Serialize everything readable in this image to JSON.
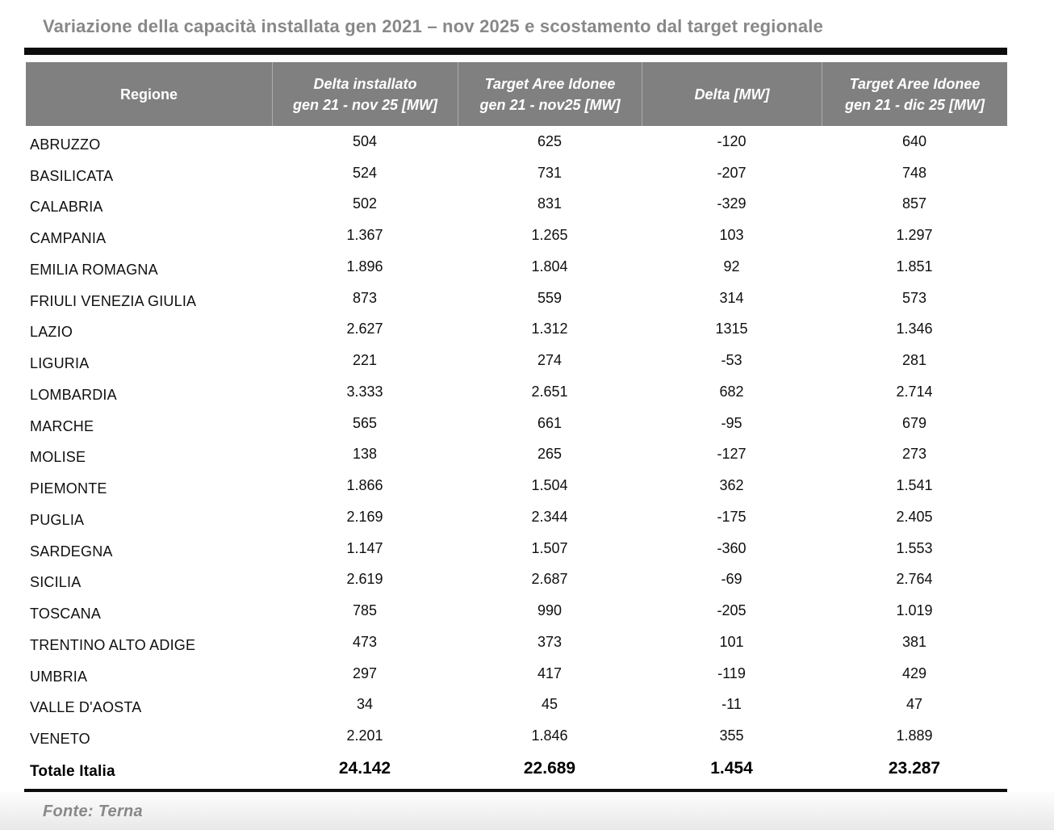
{
  "chart_data": {
    "type": "table",
    "title": "Variazione della capacità installata gen 2021 – nov 2025 e scostamento dal target regionale",
    "source": "Fonte: Terna",
    "columns": [
      {
        "line1": "Regione",
        "line2": ""
      },
      {
        "line1": "Delta installato",
        "line2": "gen 21 - nov 25 [MW]"
      },
      {
        "line1": "Target Aree Idonee",
        "line2": "gen 21 - nov25 [MW]"
      },
      {
        "line1": "Delta [MW]",
        "line2": ""
      },
      {
        "line1": "Target Aree Idonee",
        "line2": "gen 21 - dic 25 [MW]"
      }
    ],
    "rows": [
      {
        "region": "ABRUZZO",
        "values": [
          "504",
          "625",
          "-120",
          "640"
        ]
      },
      {
        "region": "BASILICATA",
        "values": [
          "524",
          "731",
          "-207",
          "748"
        ]
      },
      {
        "region": "CALABRIA",
        "values": [
          "502",
          "831",
          "-329",
          "857"
        ]
      },
      {
        "region": "CAMPANIA",
        "values": [
          "1.367",
          "1.265",
          "103",
          "1.297"
        ]
      },
      {
        "region": "EMILIA ROMAGNA",
        "values": [
          "1.896",
          "1.804",
          "92",
          "1.851"
        ]
      },
      {
        "region": "FRIULI VENEZIA GIULIA",
        "values": [
          "873",
          "559",
          "314",
          "573"
        ]
      },
      {
        "region": "LAZIO",
        "values": [
          "2.627",
          "1.312",
          "1315",
          "1.346"
        ]
      },
      {
        "region": "LIGURIA",
        "values": [
          "221",
          "274",
          "-53",
          "281"
        ]
      },
      {
        "region": "LOMBARDIA",
        "values": [
          "3.333",
          "2.651",
          "682",
          "2.714"
        ]
      },
      {
        "region": "MARCHE",
        "values": [
          "565",
          "661",
          "-95",
          "679"
        ]
      },
      {
        "region": "MOLISE",
        "values": [
          "138",
          "265",
          "-127",
          "273"
        ]
      },
      {
        "region": "PIEMONTE",
        "values": [
          "1.866",
          "1.504",
          "362",
          "1.541"
        ]
      },
      {
        "region": "PUGLIA",
        "values": [
          "2.169",
          "2.344",
          "-175",
          "2.405"
        ]
      },
      {
        "region": "SARDEGNA",
        "values": [
          "1.147",
          "1.507",
          "-360",
          "1.553"
        ]
      },
      {
        "region": "SICILIA",
        "values": [
          "2.619",
          "2.687",
          "-69",
          "2.764"
        ]
      },
      {
        "region": "TOSCANA",
        "values": [
          "785",
          "990",
          "-205",
          "1.019"
        ]
      },
      {
        "region": "TRENTINO ALTO ADIGE",
        "values": [
          "473",
          "373",
          "101",
          "381"
        ]
      },
      {
        "region": "UMBRIA",
        "values": [
          "297",
          "417",
          "-119",
          "429"
        ]
      },
      {
        "region": "VALLE D'AOSTA",
        "values": [
          "34",
          "45",
          "-11",
          "47"
        ]
      },
      {
        "region": "VENETO",
        "values": [
          "2.201",
          "1.846",
          "355",
          "1.889"
        ]
      }
    ],
    "total": {
      "label": "Totale Italia",
      "values": [
        "24.142",
        "22.689",
        "1.454",
        "23.287"
      ]
    }
  },
  "colors": {
    "header_bg": "#808080",
    "header_text": "#ffffff",
    "heading_text": "#888888",
    "rule": "#0d0d0d",
    "body_text": "#0f0f0f",
    "footer_shade": "#e8e8e8"
  }
}
